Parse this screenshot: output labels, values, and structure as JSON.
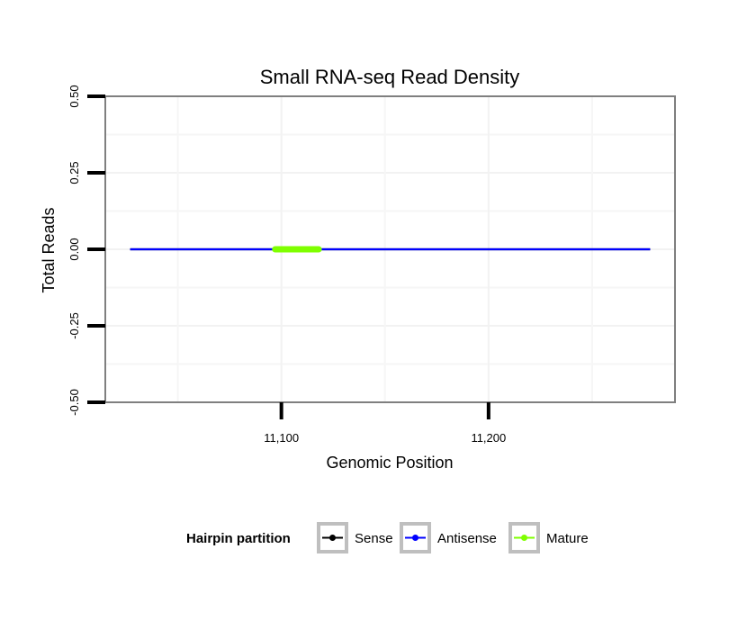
{
  "chart_data": {
    "type": "line",
    "title": "Small RNA-seq Read Density",
    "xlabel": "Genomic Position",
    "ylabel": "Total Reads",
    "xlim": [
      11015,
      11290
    ],
    "ylim": [
      -0.5,
      0.5
    ],
    "x_ticks": [
      11100,
      11200
    ],
    "x_tick_labels": [
      "11,100",
      "11,200"
    ],
    "x_minor_gridlines": [
      11050,
      11150,
      11250
    ],
    "y_ticks": [
      -0.5,
      -0.25,
      0,
      0.25,
      0.5
    ],
    "y_tick_labels": [
      "-0.50",
      "-0.25",
      "0.00",
      "0.25",
      "0.50"
    ],
    "grid": true,
    "series": [
      {
        "name": "Sense",
        "color": "#000000",
        "x": [
          11027,
          11278
        ],
        "y": [
          0,
          0
        ]
      },
      {
        "name": "Antisense",
        "color": "#0000ff",
        "x": [
          11027,
          11278
        ],
        "y": [
          0,
          0
        ]
      },
      {
        "name": "Mature",
        "color": "#7fff00",
        "x": [
          11097,
          11118
        ],
        "y": [
          0,
          0
        ]
      }
    ],
    "legend": {
      "title": "Hairpin partition",
      "position": "bottom",
      "entries": [
        {
          "label": "Sense",
          "color": "#000000"
        },
        {
          "label": "Antisense",
          "color": "#0000ff"
        },
        {
          "label": "Mature",
          "color": "#7fff00"
        }
      ]
    }
  }
}
